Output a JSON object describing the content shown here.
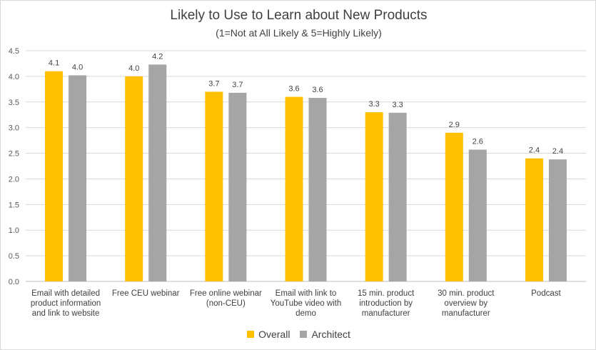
{
  "chart_data": {
    "type": "bar",
    "title": "Likely to Use to Learn about New Products",
    "subtitle": "(1=Not at All Likely & 5=Highly Likely)",
    "xlabel": "",
    "ylabel": "",
    "ylim": [
      0,
      4.5
    ],
    "yticks": [
      "0.0",
      "0.5",
      "1.0",
      "1.5",
      "2.0",
      "2.5",
      "3.0",
      "3.5",
      "4.0",
      "4.5"
    ],
    "grid": true,
    "legend_position": "bottom",
    "categories": [
      [
        "Email with detailed",
        "product information",
        "and link to website"
      ],
      [
        "Free CEU webinar"
      ],
      [
        "Free online webinar",
        "(non-CEU)"
      ],
      [
        "Email with link to",
        "YouTube video with",
        "demo"
      ],
      [
        "15 min. product",
        "introduction by",
        "manufacturer"
      ],
      [
        "30 min. product",
        "overview by",
        "manufacturer"
      ],
      [
        "Podcast"
      ]
    ],
    "series": [
      {
        "name": "Overall",
        "color": "#ffc000",
        "values": [
          4.1,
          4.0,
          3.7,
          3.6,
          3.3,
          2.9,
          2.4
        ],
        "labels": [
          "4.1",
          "4.0",
          "3.7",
          "3.6",
          "3.3",
          "2.9",
          "2.4"
        ]
      },
      {
        "name": "Architect",
        "color": "#a5a5a5",
        "values": [
          4.02,
          4.23,
          3.68,
          3.58,
          3.29,
          2.57,
          2.38
        ],
        "labels": [
          "4.0",
          "4.2",
          "3.7",
          "3.6",
          "3.3",
          "2.6",
          "2.4"
        ]
      }
    ]
  }
}
